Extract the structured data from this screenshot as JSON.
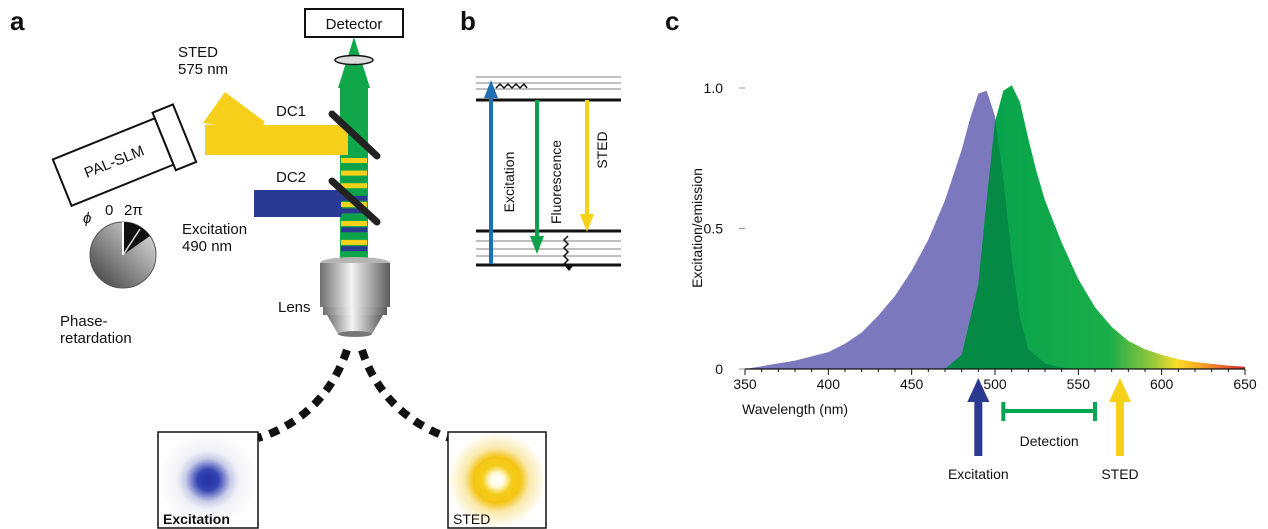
{
  "panels": {
    "a": {
      "label": "a",
      "detector": "Detector",
      "sted_line1": "STED",
      "sted_line2": "575 nm",
      "slm": "PAL-SLM",
      "dc1": "DC1",
      "dc2": "DC2",
      "excitation_line1": "Excitation",
      "excitation_line2": "490 nm",
      "phi": "ϕ",
      "zero": "0",
      "two_pi": "2π",
      "lens": "Lens",
      "phase_line1": "Phase-",
      "phase_line2": "retardation",
      "spot_excitation": "Excitation",
      "spot_sted": "STED"
    },
    "b": {
      "label": "b",
      "excitation": "Excitation",
      "fluorescence": "Fluorescence",
      "sted": "STED"
    },
    "c": {
      "label": "c"
    }
  },
  "colors": {
    "excitation_blue": "#2b3990",
    "level_blue": "#1f6fb5",
    "fluorescence_green": "#0ca04a",
    "sted_yellow": "#f7d118",
    "absorption_purple": "#7b78bd",
    "emission_green": "#00a650"
  },
  "chart_data": {
    "type": "area",
    "xlabel": "Wavelength (nm)",
    "ylabel": "Excitation/emission",
    "xlim": [
      350,
      650
    ],
    "ylim": [
      0,
      1.0
    ],
    "x_ticks": [
      "350",
      "400",
      "450",
      "500",
      "550",
      "600",
      "650"
    ],
    "y_ticks": [
      "0",
      "0.5",
      "1.0"
    ],
    "grid": false,
    "series": [
      {
        "x": [
          350,
          360,
          370,
          380,
          390,
          400,
          410,
          420,
          430,
          440,
          450,
          460,
          470,
          480,
          485,
          490,
          495,
          500,
          505,
          510,
          515,
          520,
          530,
          540,
          550
        ],
        "values": [
          0.0,
          0.01,
          0.02,
          0.03,
          0.045,
          0.06,
          0.09,
          0.13,
          0.19,
          0.26,
          0.35,
          0.46,
          0.6,
          0.78,
          0.89,
          0.98,
          0.99,
          0.9,
          0.68,
          0.4,
          0.18,
          0.07,
          0.02,
          0.005,
          0.0
        ]
      },
      {
        "x": [
          470,
          480,
          490,
          495,
          500,
          505,
          510,
          515,
          520,
          525,
          530,
          540,
          550,
          560,
          570,
          580,
          590,
          600,
          610,
          620,
          630,
          640,
          650
        ],
        "values": [
          0.0,
          0.05,
          0.3,
          0.6,
          0.88,
          0.99,
          1.01,
          0.95,
          0.82,
          0.7,
          0.6,
          0.45,
          0.32,
          0.22,
          0.15,
          0.1,
          0.07,
          0.05,
          0.035,
          0.025,
          0.018,
          0.012,
          0.008
        ]
      }
    ],
    "annotations": {
      "excitation_label": "Excitation",
      "excitation_x": 490,
      "detection_label": "Detection",
      "detection_range": [
        505,
        560
      ],
      "sted_label": "STED",
      "sted_x": 575
    }
  }
}
